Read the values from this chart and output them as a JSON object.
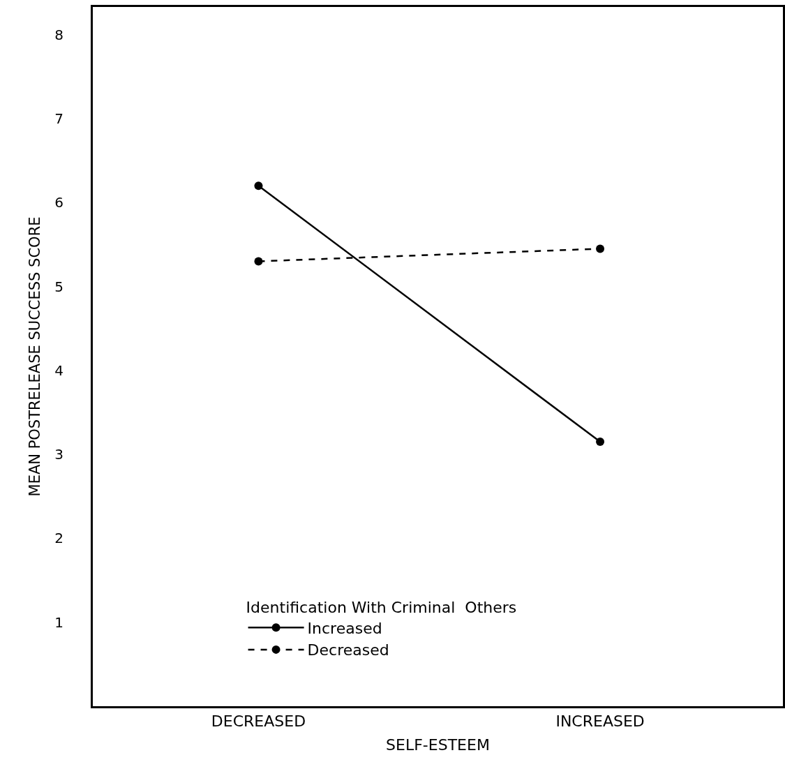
{
  "chart_data": {
    "type": "line",
    "xlabel": "SELF-ESTEEM",
    "ylabel": "MEAN POSTRELEASE SUCCESS SCORE",
    "legend_title": "Identification With Criminal  Others",
    "categories": [
      "DECREASED",
      "INCREASED"
    ],
    "series": [
      {
        "name": "Increased",
        "color": "#000000",
        "values": [
          6.2,
          3.15
        ],
        "line_style": "solid"
      },
      {
        "name": "Decreased",
        "color": "#000000",
        "values": [
          5.3,
          5.45
        ],
        "line_style": "dashed"
      }
    ],
    "ylim": [
      0,
      8.33
    ],
    "yticks": [
      1,
      2,
      3,
      4,
      5,
      6,
      7,
      8
    ],
    "legend": "bottom left",
    "marker": "circle"
  }
}
